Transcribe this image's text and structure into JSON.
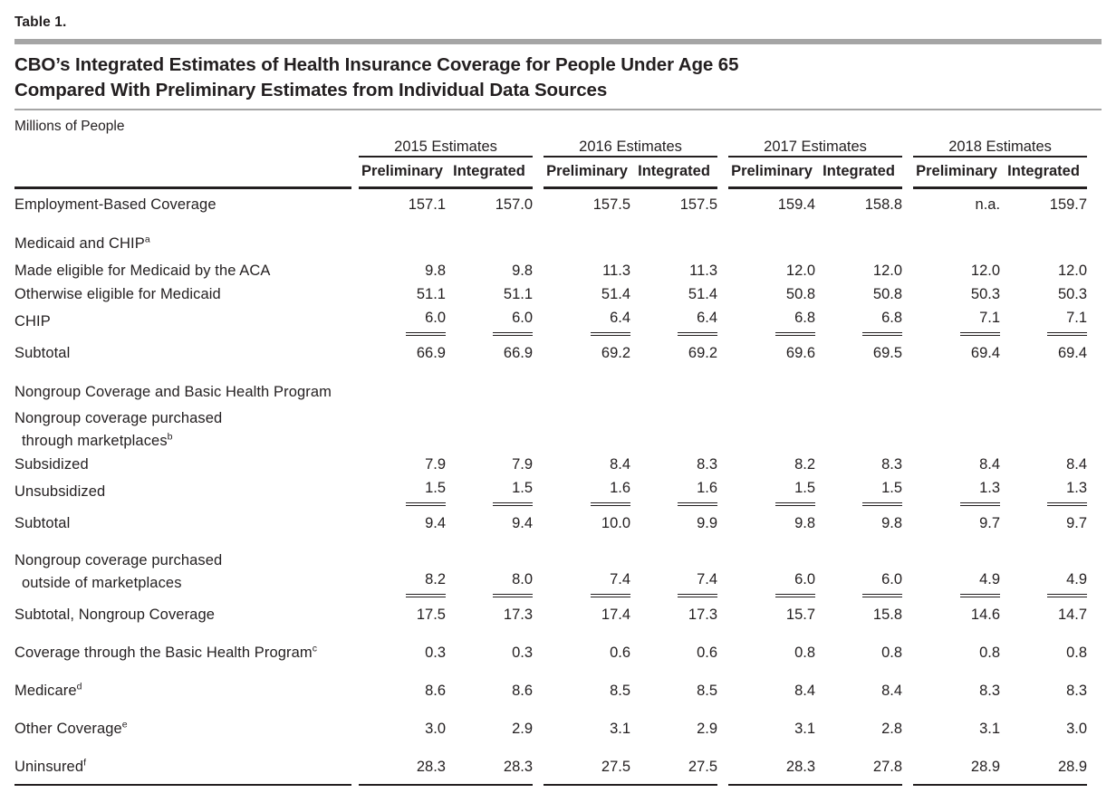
{
  "table_label": "Table 1.",
  "title_line1": "CBO’s Integrated Estimates of Health Insurance Coverage for People Under Age 65",
  "title_line2": "Compared With Preliminary Estimates from Individual Data Sources",
  "units": "Millions of People",
  "columns": {
    "groups": [
      {
        "label": "2015 Estimates"
      },
      {
        "label": "2016 Estimates"
      },
      {
        "label": "2017 Estimates"
      },
      {
        "label": "2018 Estimates"
      }
    ],
    "sub_headers": [
      "Preliminary",
      "Integrated"
    ]
  },
  "rows": [
    {
      "label": "Employment-Based Coverage",
      "indent": 0,
      "space": "xs",
      "values": [
        "157.1",
        "157.0",
        "157.5",
        "157.5",
        "159.4",
        "158.8",
        "n.a.",
        "159.7"
      ]
    },
    {
      "label": "Medicaid and CHIP",
      "sup": "a",
      "indent": 0,
      "space": "lg"
    },
    {
      "label": "Made eligible for Medicaid by the ACA",
      "indent": 1,
      "space": "xs",
      "values": [
        "9.8",
        "9.8",
        "11.3",
        "11.3",
        "12.0",
        "12.0",
        "12.0",
        "12.0"
      ]
    },
    {
      "label": "Otherwise eligible for Medicaid",
      "indent": 1,
      "values": [
        "51.1",
        "51.1",
        "51.4",
        "51.4",
        "50.8",
        "50.8",
        "50.3",
        "50.3"
      ]
    },
    {
      "label": "CHIP",
      "indent": 1,
      "rule": "below",
      "values": [
        "6.0",
        "6.0",
        "6.4",
        "6.4",
        "6.8",
        "6.8",
        "7.1",
        "7.1"
      ]
    },
    {
      "label": "Subtotal",
      "indent": 3,
      "rule": "above",
      "values": [
        "66.9",
        "66.9",
        "69.2",
        "69.2",
        "69.6",
        "69.5",
        "69.4",
        "69.4"
      ]
    },
    {
      "label": "Nongroup Coverage and Basic Health Program",
      "indent": 0,
      "space": "lg"
    },
    {
      "label": "Nongroup coverage purchased",
      "label2": "through marketplaces",
      "sup2": "b",
      "indent": 1,
      "space": "xs"
    },
    {
      "label": "Subsidized",
      "indent": 2,
      "values": [
        "7.9",
        "7.9",
        "8.4",
        "8.3",
        "8.2",
        "8.3",
        "8.4",
        "8.4"
      ]
    },
    {
      "label": "Unsubsidized",
      "indent": 2,
      "rule": "below",
      "values": [
        "1.5",
        "1.5",
        "1.6",
        "1.6",
        "1.5",
        "1.5",
        "1.3",
        "1.3"
      ]
    },
    {
      "label": "Subtotal",
      "indent": 3,
      "rule": "above",
      "values": [
        "9.4",
        "9.4",
        "10.0",
        "9.9",
        "9.8",
        "9.8",
        "9.7",
        "9.7"
      ]
    },
    {
      "label": "Nongroup coverage purchased",
      "label2": "outside of marketplaces",
      "indent": 1,
      "space": "md",
      "rule": "below",
      "values": [
        "8.2",
        "8.0",
        "7.4",
        "7.4",
        "6.0",
        "6.0",
        "4.9",
        "4.9"
      ]
    },
    {
      "label": "Subtotal, Nongroup Coverage",
      "indent": 3,
      "rule": "above",
      "values": [
        "17.5",
        "17.3",
        "17.4",
        "17.3",
        "15.7",
        "15.8",
        "14.6",
        "14.7"
      ]
    },
    {
      "label": "Coverage through the Basic Health Program",
      "sup": "c",
      "indent": 1,
      "space": "md",
      "values": [
        "0.3",
        "0.3",
        "0.6",
        "0.6",
        "0.8",
        "0.8",
        "0.8",
        "0.8"
      ]
    },
    {
      "label": "Medicare",
      "sup": "d",
      "indent": 0,
      "space": "md",
      "values": [
        "8.6",
        "8.6",
        "8.5",
        "8.5",
        "8.4",
        "8.4",
        "8.3",
        "8.3"
      ]
    },
    {
      "label": "Other Coverage",
      "sup": "e",
      "indent": 0,
      "space": "md",
      "values": [
        "3.0",
        "2.9",
        "3.1",
        "2.9",
        "3.1",
        "2.8",
        "3.1",
        "3.0"
      ]
    },
    {
      "label": "Uninsured",
      "sup": "f",
      "indent": 0,
      "space": "md",
      "last": true,
      "values": [
        "28.3",
        "28.3",
        "27.5",
        "27.5",
        "28.3",
        "27.8",
        "28.9",
        "28.9"
      ]
    }
  ]
}
